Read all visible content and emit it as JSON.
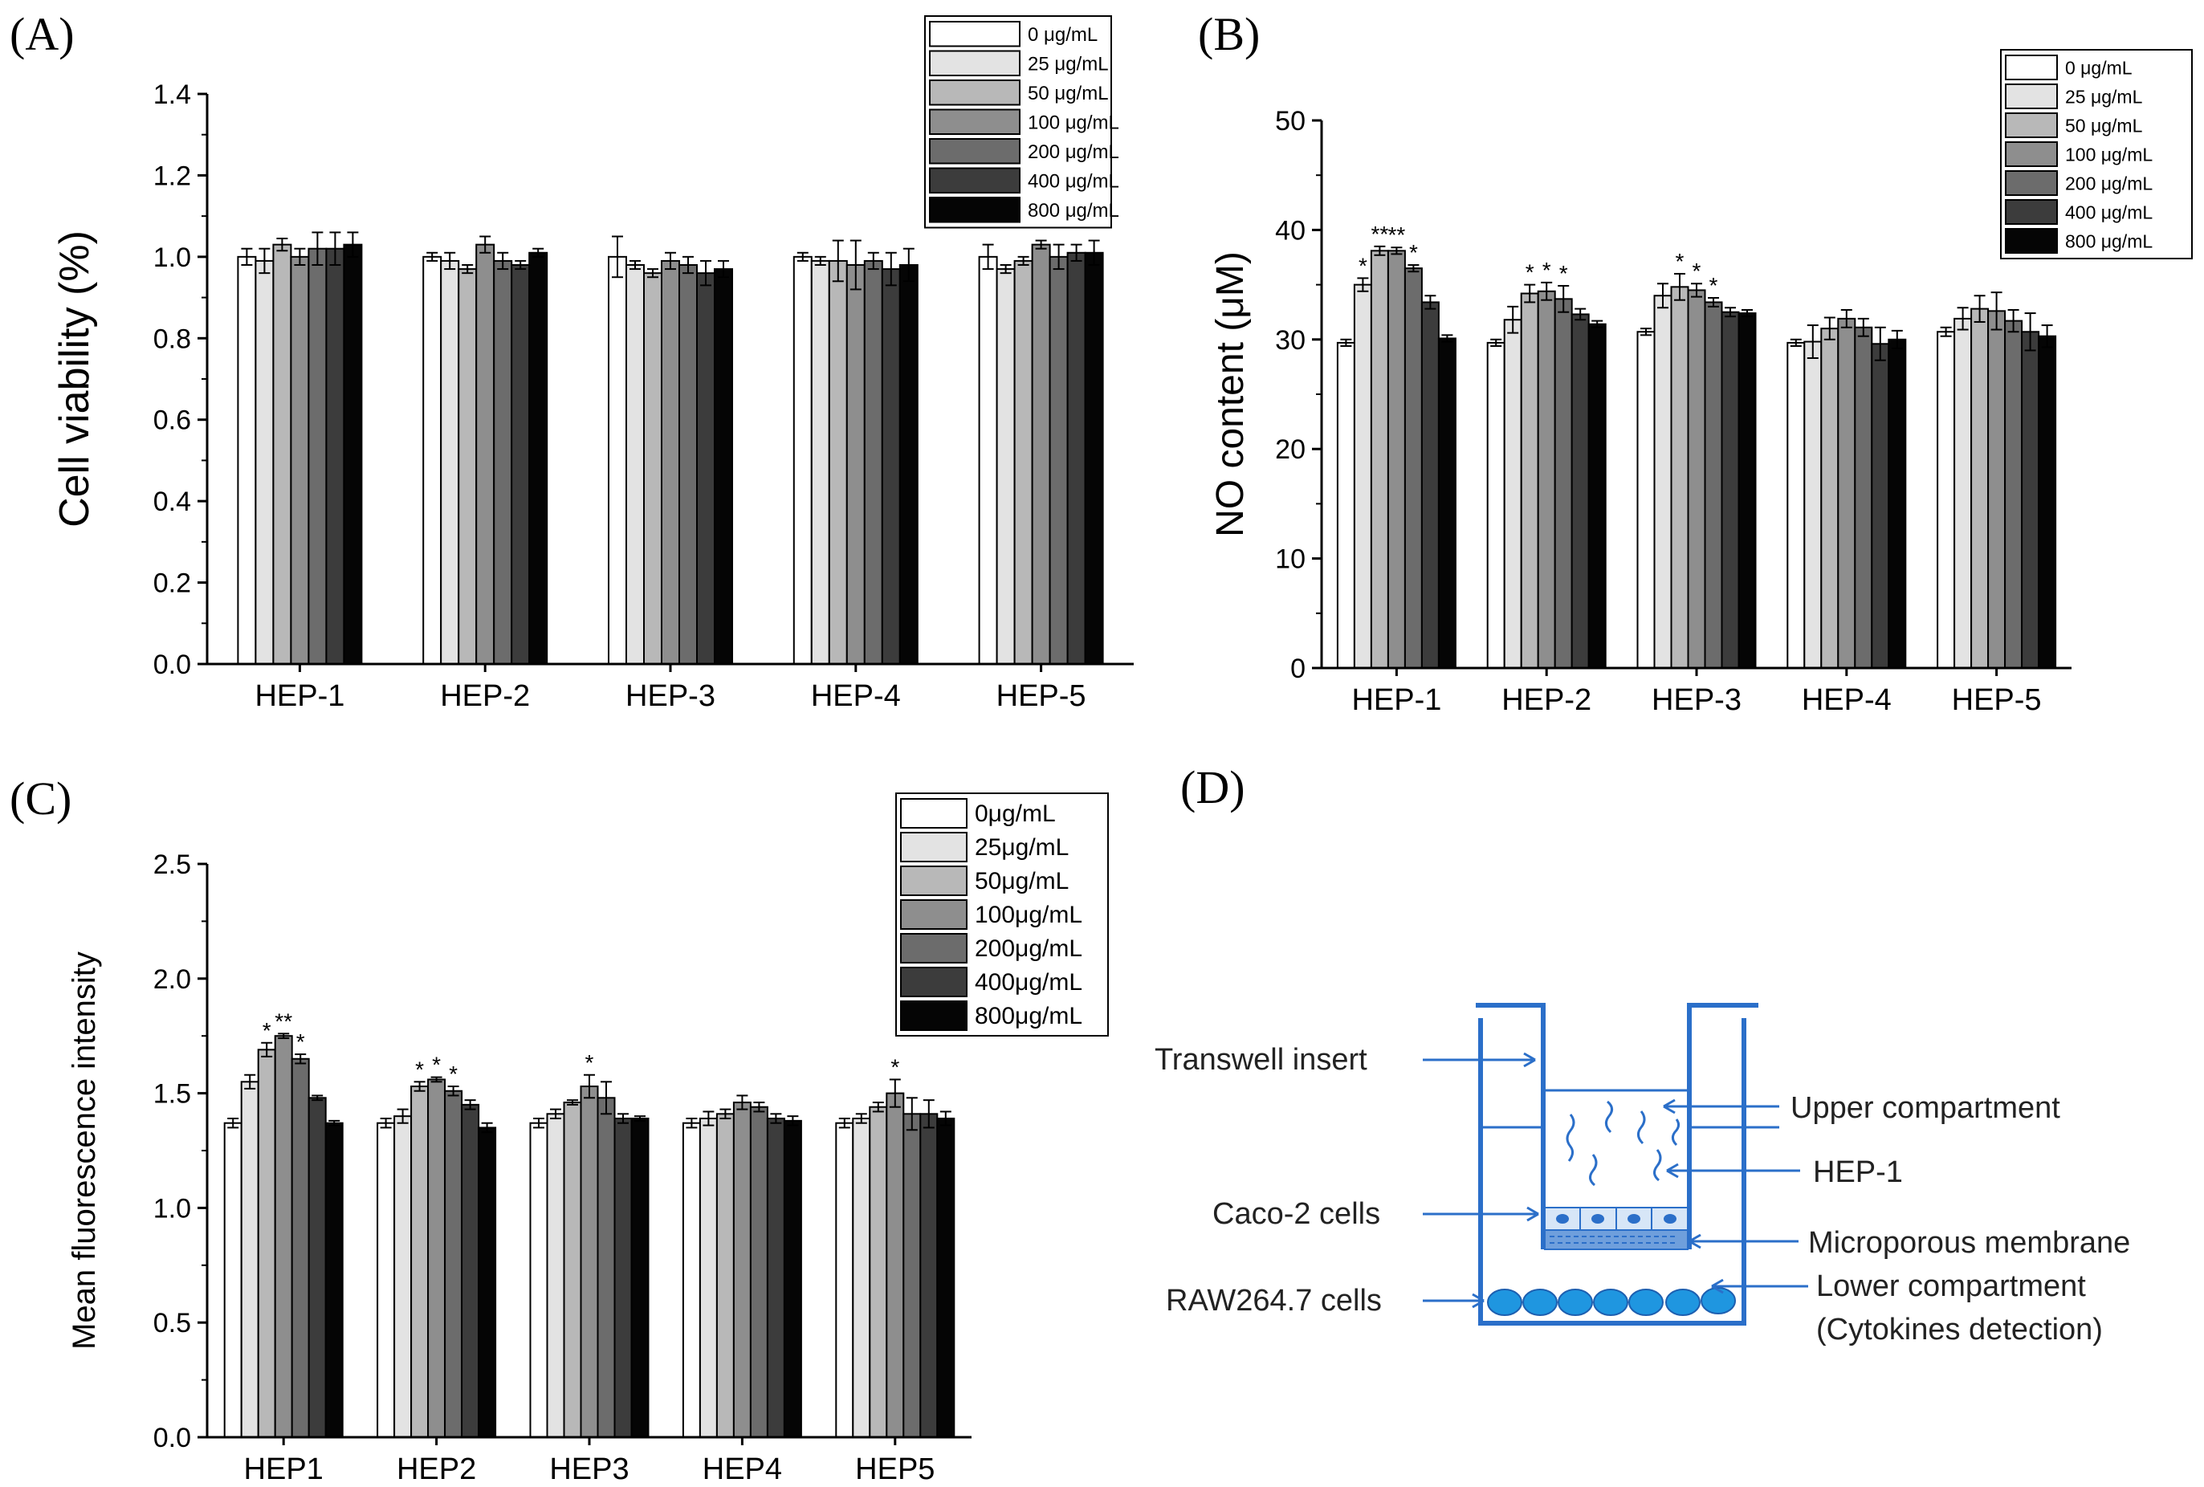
{
  "colors": [
    "#ffffff",
    "#e3e3e3",
    "#b8b8b8",
    "#8e8e8e",
    "#6c6c6c",
    "#3c3c3c",
    "#050505"
  ],
  "diagram_color": "#2b6fc9",
  "chart_data": [
    {
      "panel": "(A)",
      "type": "bar",
      "ylabel": "Cell viability (%)",
      "ylim": [
        0,
        1.4
      ],
      "yticks": [
        "0.0",
        "0.2",
        "0.4",
        "0.6",
        "0.8",
        "1.0",
        "1.2",
        "1.4"
      ],
      "categories": [
        "HEP-1",
        "HEP-2",
        "HEP-3",
        "HEP-4",
        "HEP-5"
      ],
      "legend": [
        "0 μg/mL",
        "25 μg/mL",
        "50 μg/mL",
        "100 μg/mL",
        "200 μg/mL",
        "400 μg/mL",
        "800 μg/mL"
      ],
      "legend_position": "top-right",
      "series": [
        {
          "name": "0 μg/mL",
          "values": [
            1.0,
            1.0,
            1.0,
            1.0,
            1.0
          ],
          "errors": [
            0.02,
            0.01,
            0.05,
            0.01,
            0.03
          ]
        },
        {
          "name": "25 μg/mL",
          "values": [
            0.99,
            0.99,
            0.98,
            0.99,
            0.97
          ],
          "errors": [
            0.03,
            0.02,
            0.01,
            0.01,
            0.01
          ]
        },
        {
          "name": "50 μg/mL",
          "values": [
            1.03,
            0.97,
            0.96,
            0.99,
            0.99
          ],
          "errors": [
            0.015,
            0.01,
            0.01,
            0.05,
            0.01
          ]
        },
        {
          "name": "100 μg/mL",
          "values": [
            1.0,
            1.03,
            0.99,
            0.98,
            1.03
          ],
          "errors": [
            0.02,
            0.02,
            0.02,
            0.06,
            0.01
          ]
        },
        {
          "name": "200 μg/mL",
          "values": [
            1.02,
            0.99,
            0.98,
            0.99,
            1.0
          ],
          "errors": [
            0.04,
            0.02,
            0.02,
            0.02,
            0.03
          ]
        },
        {
          "name": "400 μg/mL",
          "values": [
            1.02,
            0.98,
            0.96,
            0.97,
            1.01
          ],
          "errors": [
            0.04,
            0.01,
            0.03,
            0.04,
            0.02
          ]
        },
        {
          "name": "800 μg/mL",
          "values": [
            1.03,
            1.01,
            0.97,
            0.98,
            1.01
          ],
          "errors": [
            0.03,
            0.01,
            0.02,
            0.04,
            0.03
          ]
        }
      ],
      "annotations": []
    },
    {
      "panel": "(B)",
      "type": "bar",
      "ylabel": "NO content (μM)",
      "ylim": [
        0,
        50
      ],
      "yticks": [
        "0",
        "10",
        "20",
        "30",
        "40",
        "50"
      ],
      "categories": [
        "HEP-1",
        "HEP-2",
        "HEP-3",
        "HEP-4",
        "HEP-5"
      ],
      "legend": [
        "0 μg/mL",
        "25 μg/mL",
        "50 μg/mL",
        "100 μg/mL",
        "200 μg/mL",
        "400 μg/mL",
        "800 μg/mL"
      ],
      "legend_position": "top-right",
      "series": [
        {
          "name": "0 μg/mL",
          "values": [
            29.7,
            29.7,
            30.7,
            29.7,
            30.7
          ],
          "errors": [
            0.3,
            0.3,
            0.3,
            0.3,
            0.4
          ]
        },
        {
          "name": "25 μg/mL",
          "values": [
            35.0,
            31.8,
            34.0,
            29.8,
            31.9
          ],
          "errors": [
            0.6,
            1.2,
            1.1,
            1.5,
            1.0
          ]
        },
        {
          "name": "50 μg/mL",
          "values": [
            38.1,
            34.2,
            34.8,
            31.0,
            32.8
          ],
          "errors": [
            0.4,
            0.8,
            1.2,
            1.0,
            1.2
          ]
        },
        {
          "name": "100 μg/mL",
          "values": [
            38.1,
            34.4,
            34.5,
            31.9,
            32.6
          ],
          "errors": [
            0.3,
            0.8,
            0.6,
            0.8,
            1.7
          ]
        },
        {
          "name": "200 μg/mL",
          "values": [
            36.5,
            33.7,
            33.4,
            31.1,
            31.7
          ],
          "errors": [
            0.3,
            1.2,
            0.4,
            0.8,
            1.0
          ]
        },
        {
          "name": "400 μg/mL",
          "values": [
            33.4,
            32.3,
            32.5,
            29.6,
            30.7
          ],
          "errors": [
            0.6,
            0.5,
            0.4,
            1.5,
            1.7
          ]
        },
        {
          "name": "800 μg/mL",
          "values": [
            30.1,
            31.4,
            32.4,
            30.0,
            30.3
          ],
          "errors": [
            0.3,
            0.3,
            0.3,
            0.8,
            1.0
          ]
        }
      ],
      "annotations": [
        {
          "category": 0,
          "series": 1,
          "text": "*"
        },
        {
          "category": 0,
          "series": 2,
          "text": "**"
        },
        {
          "category": 0,
          "series": 3,
          "text": "**"
        },
        {
          "category": 0,
          "series": 4,
          "text": "*"
        },
        {
          "category": 1,
          "series": 2,
          "text": "*"
        },
        {
          "category": 1,
          "series": 3,
          "text": "*"
        },
        {
          "category": 1,
          "series": 4,
          "text": "*"
        },
        {
          "category": 2,
          "series": 2,
          "text": "*"
        },
        {
          "category": 2,
          "series": 3,
          "text": "*"
        },
        {
          "category": 2,
          "series": 4,
          "text": "*"
        }
      ]
    },
    {
      "panel": "(C)",
      "type": "bar",
      "ylabel": "Mean fluorescence intensity",
      "ylim": [
        0,
        2.5
      ],
      "yticks": [
        "0.0",
        "0.5",
        "1.0",
        "1.5",
        "2.0",
        "2.5"
      ],
      "categories": [
        "HEP1",
        "HEP2",
        "HEP3",
        "HEP4",
        "HEP5"
      ],
      "legend": [
        "0μg/mL",
        "25μg/mL",
        "50μg/mL",
        "100μg/mL",
        "200μg/mL",
        "400μg/mL",
        "800μg/mL"
      ],
      "legend_position": "top-right",
      "series": [
        {
          "name": "0μg/mL",
          "values": [
            1.37,
            1.37,
            1.37,
            1.37,
            1.37
          ],
          "errors": [
            0.02,
            0.02,
            0.02,
            0.02,
            0.02
          ]
        },
        {
          "name": "25μg/mL",
          "values": [
            1.55,
            1.4,
            1.41,
            1.39,
            1.39
          ],
          "errors": [
            0.03,
            0.03,
            0.02,
            0.03,
            0.02
          ]
        },
        {
          "name": "50μg/mL",
          "values": [
            1.69,
            1.53,
            1.46,
            1.41,
            1.44
          ],
          "errors": [
            0.03,
            0.02,
            0.01,
            0.02,
            0.02
          ]
        },
        {
          "name": "100μg/mL",
          "values": [
            1.75,
            1.56,
            1.53,
            1.46,
            1.5
          ],
          "errors": [
            0.01,
            0.01,
            0.05,
            0.03,
            0.06
          ]
        },
        {
          "name": "200μg/mL",
          "values": [
            1.65,
            1.51,
            1.48,
            1.44,
            1.41
          ],
          "errors": [
            0.02,
            0.02,
            0.07,
            0.02,
            0.07
          ]
        },
        {
          "name": "400μg/mL",
          "values": [
            1.48,
            1.45,
            1.39,
            1.39,
            1.41
          ],
          "errors": [
            0.01,
            0.02,
            0.02,
            0.02,
            0.06
          ]
        },
        {
          "name": "800μg/mL",
          "values": [
            1.37,
            1.35,
            1.39,
            1.38,
            1.39
          ],
          "errors": [
            0.01,
            0.02,
            0.01,
            0.02,
            0.03
          ]
        }
      ],
      "annotations": [
        {
          "category": 0,
          "series": 2,
          "text": "*"
        },
        {
          "category": 0,
          "series": 3,
          "text": "**"
        },
        {
          "category": 0,
          "series": 4,
          "text": "*"
        },
        {
          "category": 1,
          "series": 2,
          "text": "*"
        },
        {
          "category": 1,
          "series": 3,
          "text": "*"
        },
        {
          "category": 1,
          "series": 4,
          "text": "*"
        },
        {
          "category": 2,
          "series": 3,
          "text": "*"
        },
        {
          "category": 4,
          "series": 3,
          "text": "*"
        }
      ]
    }
  ],
  "diagram": {
    "panel": "(D)",
    "labels": {
      "transwell_insert": "Transwell insert",
      "upper_compartment": "Upper compartment",
      "hep1": "HEP-1",
      "caco2": "Caco-2 cells",
      "membrane": "Microporous membrane",
      "raw": "RAW264.7 cells",
      "lower_compartment": "Lower compartment",
      "cytokines": "(Cytokines detection)"
    }
  }
}
